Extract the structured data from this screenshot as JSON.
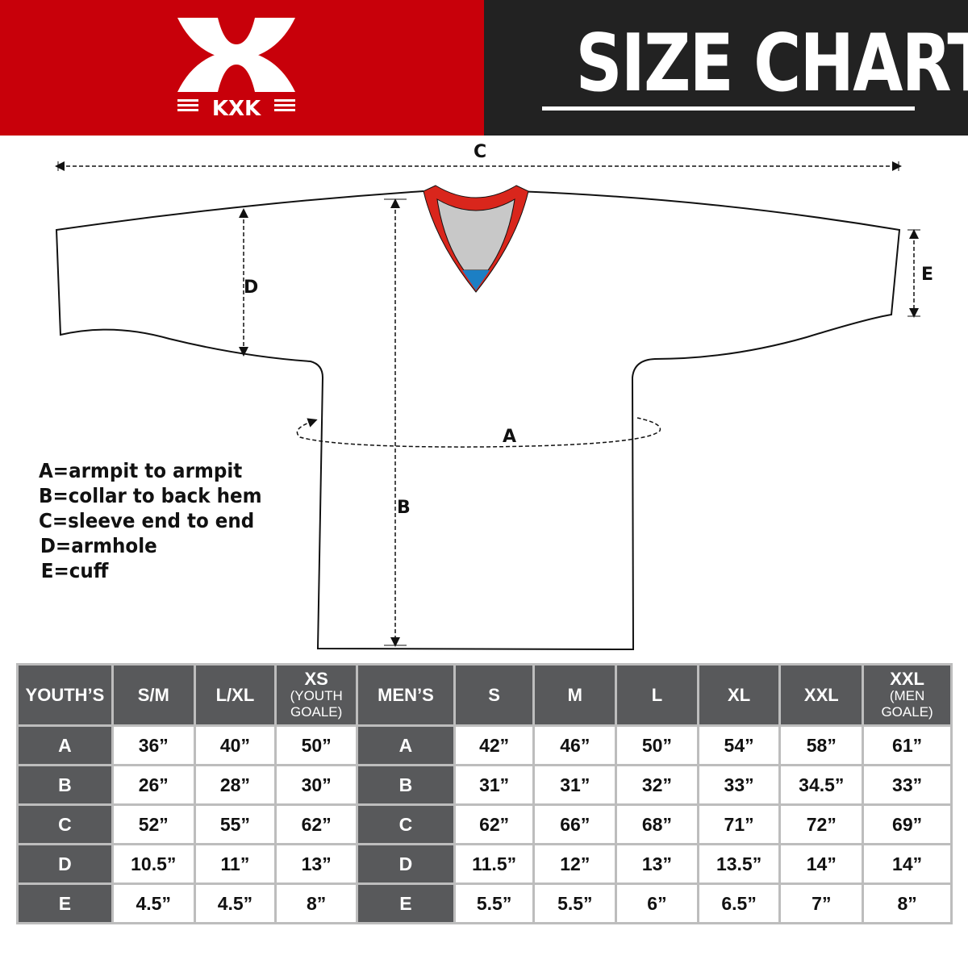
{
  "brand": {
    "logo_text": "KXK",
    "red": "#c8000a",
    "dark": "#222222"
  },
  "header": {
    "title": "SIZE CHART"
  },
  "diagram": {
    "labels": {
      "a": "A",
      "b": "B",
      "c": "C",
      "d": "D",
      "e": "E"
    },
    "collar_colors": {
      "trim": "#d9261c",
      "inner": "#c8c8c8",
      "tag": "#1c7fc4"
    }
  },
  "legend": [
    "A=armpit to armpit",
    "B=collar to back hem",
    "C=sleeve end to end",
    "D=armhole",
    "E=cuff"
  ],
  "size_table": {
    "header": [
      {
        "main": "YOUTH’S",
        "group": true
      },
      {
        "main": "S/M"
      },
      {
        "main": "L/XL"
      },
      {
        "main": "XS",
        "sub": "(YOUTH GOALE)"
      },
      {
        "main": "MEN’S",
        "group": true
      },
      {
        "main": "S"
      },
      {
        "main": "M"
      },
      {
        "main": "L"
      },
      {
        "main": "XL"
      },
      {
        "main": "XXL"
      },
      {
        "main": "XXL",
        "sub": "(MEN GOALE)"
      }
    ],
    "rows": [
      {
        "label": "A",
        "youth": [
          "36”",
          "40”",
          "50”"
        ],
        "men": [
          "42”",
          "46”",
          "50”",
          "54”",
          "58”",
          "61”"
        ]
      },
      {
        "label": "B",
        "youth": [
          "26”",
          "28”",
          "30”"
        ],
        "men": [
          "31”",
          "31”",
          "32”",
          "33”",
          "34.5”",
          "33”"
        ]
      },
      {
        "label": "C",
        "youth": [
          "52”",
          "55”",
          "62”"
        ],
        "men": [
          "62”",
          "66”",
          "68”",
          "71”",
          "72”",
          "69”"
        ]
      },
      {
        "label": "D",
        "youth": [
          "10.5”",
          "11”",
          "13”"
        ],
        "men": [
          "11.5”",
          "12”",
          "13”",
          "13.5”",
          "14”",
          "14”"
        ]
      },
      {
        "label": "E",
        "youth": [
          "4.5”",
          "4.5”",
          "8”"
        ],
        "men": [
          "5.5”",
          "5.5”",
          "6”",
          "6.5”",
          "7”",
          "8”"
        ]
      }
    ]
  }
}
